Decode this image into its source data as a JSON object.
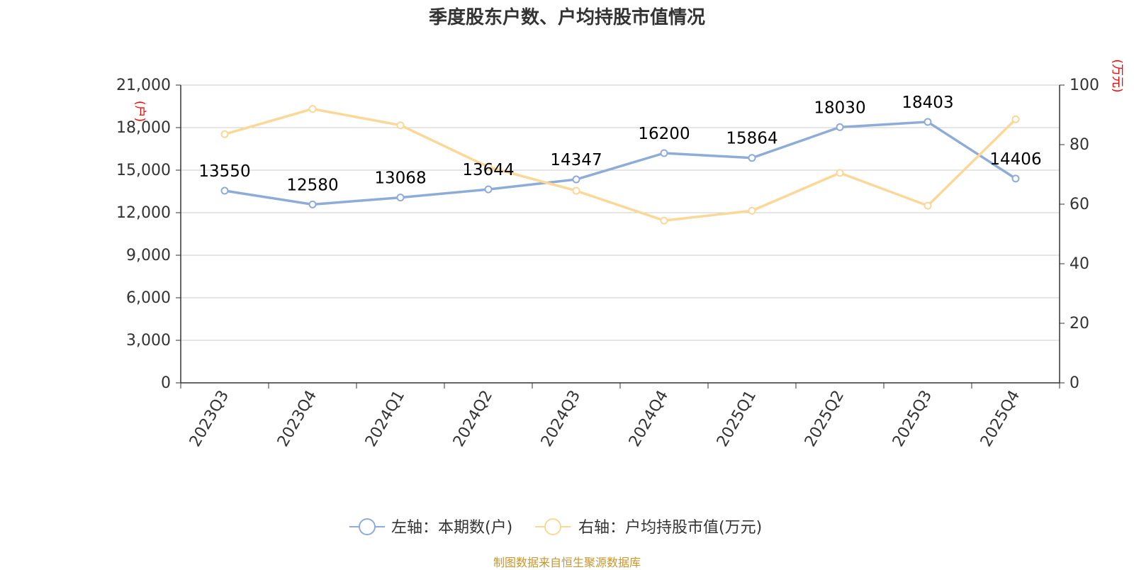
{
  "page": {
    "title": "季度股东户数、户均持股市值情况",
    "source": "制图数据来自恒生聚源数据库"
  },
  "colors": {
    "left_series": "#8eacd8",
    "right_series": "#fbd898",
    "right_unit": "#ff0000",
    "axis": "#333333",
    "grid": "#cccccc",
    "source": "#c8962e"
  },
  "chart_data": {
    "type": "line",
    "title": "季度股东户数、户均持股市值情况",
    "categories": [
      "2023Q3",
      "2023Q4",
      "2024Q1",
      "2024Q2",
      "2024Q3",
      "2024Q4",
      "2025Q1",
      "2025Q2",
      "2025Q3",
      "2025Q4"
    ],
    "left_axis": {
      "unit": "(户)",
      "min": 0,
      "max": 21000,
      "ticks": [
        0,
        3000,
        6000,
        9000,
        12000,
        15000,
        18000,
        21000
      ],
      "tick_labels": [
        "0",
        "3,000",
        "6,000",
        "9,000",
        "12,000",
        "15,000",
        "18,000",
        "21,000"
      ]
    },
    "right_axis": {
      "unit": "(万元)",
      "min": 0,
      "max": 100,
      "ticks": [
        0,
        20,
        40,
        60,
        80,
        100
      ],
      "tick_labels": [
        "0",
        "20",
        "40",
        "60",
        "80",
        "100"
      ]
    },
    "grid": true,
    "legend_position": "bottom",
    "series": [
      {
        "name": "左轴：本期数(户)",
        "axis": "left",
        "values": [
          13550,
          12580,
          13068,
          13644,
          14347,
          16200,
          15864,
          18030,
          18403,
          14406
        ],
        "labels": [
          "13550",
          "12580",
          "13068",
          "13644",
          "14347",
          "16200",
          "15864",
          "18030",
          "18403",
          "14406"
        ]
      },
      {
        "name": "右轴：户均持股市值(万元)",
        "axis": "right",
        "values": [
          83.5,
          92.0,
          86.5,
          72.5,
          64.5,
          54.5,
          57.8,
          70.5,
          59.5,
          88.5
        ]
      }
    ]
  }
}
